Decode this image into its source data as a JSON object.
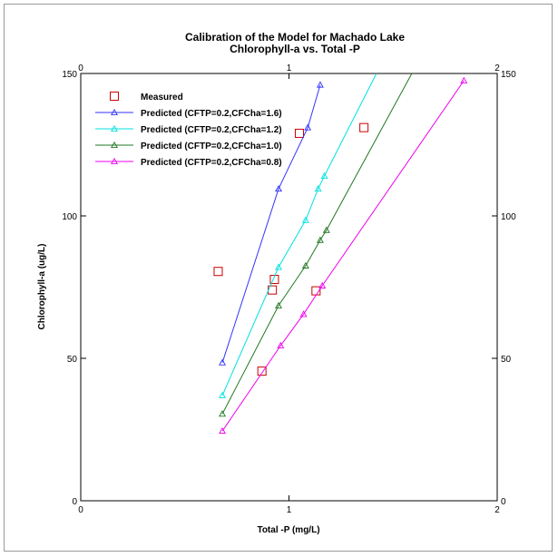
{
  "chart_data": {
    "type": "scatter",
    "title": "Calibration of the Model for Machado Lake",
    "subtitle": "Chlorophyll-a vs. Total -P",
    "xlabel": "Total -P (mg/L)",
    "ylabel": "Chlorophyll-a (ug/L)",
    "xlim": [
      0,
      2
    ],
    "ylim": [
      0,
      150
    ],
    "x_ticks": [
      0,
      1,
      2
    ],
    "y_ticks": [
      0,
      50,
      100,
      150
    ],
    "top_x_ticks": [
      0,
      1,
      2
    ],
    "right_y_ticks": [
      0,
      50,
      100,
      150
    ],
    "grid": false,
    "legend_position": "top-left",
    "series": [
      {
        "name": "Measured",
        "kind": "scatter",
        "marker": "square",
        "color": "#cc0000",
        "points": [
          [
            0.66,
            80.5
          ],
          [
            0.93,
            77.7
          ],
          [
            0.92,
            74.0
          ],
          [
            1.13,
            73.7
          ],
          [
            0.87,
            45.5
          ],
          [
            1.05,
            129.0
          ],
          [
            1.36,
            131.0
          ]
        ]
      },
      {
        "name": "Predicted (CFTP=0.2,CFCha=1.6)",
        "kind": "line",
        "marker": "triangle",
        "color": "#3333ff",
        "points": [
          [
            0.68,
            48.5
          ],
          [
            0.95,
            109.5
          ],
          [
            1.09,
            131.0
          ],
          [
            1.15,
            146.0
          ]
        ]
      },
      {
        "name": "Predicted (CFTP=0.2,CFCha=1.2)",
        "kind": "line",
        "marker": "triangle",
        "color": "#00e0e0",
        "points": [
          [
            0.68,
            37.0
          ],
          [
            0.95,
            82.0
          ],
          [
            1.08,
            98.5
          ],
          [
            1.14,
            109.5
          ],
          [
            1.17,
            114.0
          ],
          [
            1.42,
            150.0
          ]
        ]
      },
      {
        "name": "Predicted (CFTP=0.2,CFCha=1.0)",
        "kind": "line",
        "marker": "triangle",
        "color": "#227722",
        "points": [
          [
            0.68,
            30.5
          ],
          [
            0.95,
            68.5
          ],
          [
            1.08,
            82.5
          ],
          [
            1.15,
            91.5
          ],
          [
            1.18,
            95.0
          ],
          [
            1.59,
            150.0
          ]
        ]
      },
      {
        "name": "Predicted (CFTP=0.2,CFCha=0.8)",
        "kind": "line",
        "marker": "triangle",
        "color": "#ee00ee",
        "points": [
          [
            0.68,
            24.5
          ],
          [
            0.96,
            54.5
          ],
          [
            1.07,
            65.5
          ],
          [
            1.16,
            75.5
          ],
          [
            1.84,
            147.5
          ]
        ]
      }
    ]
  }
}
